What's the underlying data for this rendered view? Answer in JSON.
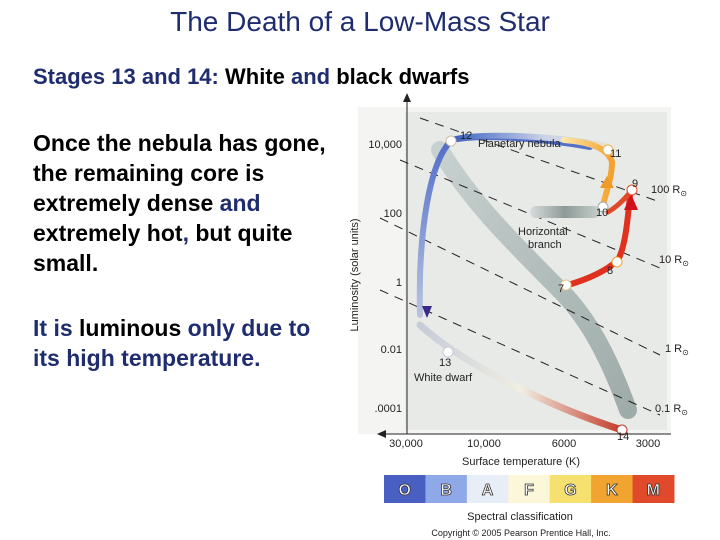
{
  "title": "The Death of a Low-Mass Star",
  "subtitle": {
    "part1": "Stages 13 and 14: ",
    "part2": "White",
    "part3": " and ",
    "part4": "black dwarfs"
  },
  "paragraph1": {
    "s1": "Once the nebula has gone, the remaining core is extremely dense",
    "s2": " and ",
    "s3": "extremely hot",
    "s4": ", ",
    "s5": "but quite small."
  },
  "paragraph2": {
    "s1": "It is ",
    "s2": "luminous",
    "s3": " only due to its high temperature."
  },
  "diagram": {
    "y_axis_label": "Luminosity (solar units)",
    "y_ticks": [
      "10,000",
      "100",
      "1",
      "0.01",
      ".0001"
    ],
    "x_axis_label": "Surface temperature (K)",
    "x_ticks": [
      "30,000",
      "10,000",
      "6000",
      "3000"
    ],
    "radius_labels": [
      "100 R",
      "10 R",
      "1 R",
      "0.1 R"
    ],
    "sun_symbol": "⊙",
    "stage_numbers": [
      "12",
      "11",
      "9",
      "10",
      "8",
      "7",
      "13",
      "14"
    ],
    "region_labels": {
      "planetary_nebula": "Planetary nebula",
      "horizontal_branch_1": "Horizontal",
      "horizontal_branch_2": "branch",
      "white_dwarf": "White dwarf"
    },
    "spectral_classes": [
      "O",
      "B",
      "A",
      "F",
      "G",
      "K",
      "M"
    ],
    "spectral_colors": [
      "#4a5fc2",
      "#8ea8e8",
      "#e8eef8",
      "#fbf7d8",
      "#f6e070",
      "#f2a430",
      "#e04a2a"
    ],
    "spectral_label": "Spectral classification",
    "copyright": "Copyright © 2005 Pearson Prentice Hall, Inc."
  }
}
